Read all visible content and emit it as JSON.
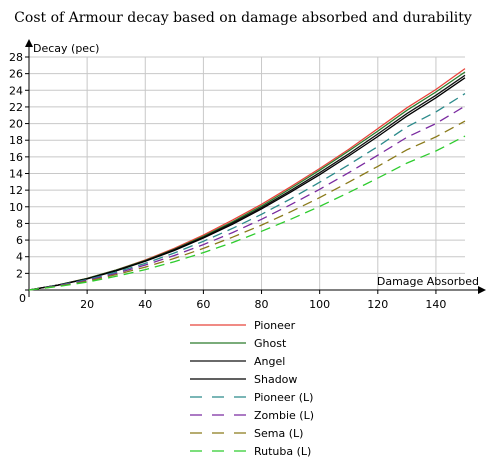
{
  "chart_data": {
    "type": "line",
    "title": "Cost of Armour decay based on damage absorbed and durability",
    "xlabel": "Damage Absorbed",
    "ylabel": "Decay (pec)",
    "xlim": [
      0,
      150
    ],
    "ylim": [
      0,
      28
    ],
    "x_ticks": [
      0,
      20,
      40,
      60,
      80,
      100,
      120,
      140
    ],
    "y_ticks": [
      2,
      4,
      6,
      8,
      10,
      12,
      14,
      16,
      18,
      20,
      22,
      24,
      26,
      28
    ],
    "origin_label": "0",
    "grid": true,
    "legend_position": "bottom",
    "x": [
      0,
      10,
      20,
      30,
      40,
      50,
      60,
      70,
      80,
      90,
      100,
      110,
      120,
      130,
      140,
      150
    ],
    "series": [
      {
        "name": "Pioneer",
        "color": "#e8433a",
        "style": "solid",
        "values": [
          0,
          0.6,
          1.4,
          2.4,
          3.6,
          5.0,
          6.6,
          8.4,
          10.3,
          12.4,
          14.6,
          16.9,
          19.4,
          21.9,
          24.1,
          26.6
        ]
      },
      {
        "name": "Ghost",
        "color": "#2a7a2a",
        "style": "solid",
        "values": [
          0,
          0.6,
          1.4,
          2.4,
          3.55,
          4.9,
          6.45,
          8.2,
          10.1,
          12.2,
          14.4,
          16.7,
          19.1,
          21.6,
          23.8,
          26.2
        ]
      },
      {
        "name": "Angel",
        "color": "#111111",
        "style": "solid",
        "values": [
          0,
          0.6,
          1.35,
          2.35,
          3.5,
          4.85,
          6.35,
          8.05,
          9.9,
          11.95,
          14.1,
          16.35,
          18.75,
          21.2,
          23.4,
          25.8
        ]
      },
      {
        "name": "Shadow",
        "color": "#000000",
        "style": "solid",
        "values": [
          0,
          0.58,
          1.33,
          2.3,
          3.45,
          4.75,
          6.25,
          7.9,
          9.75,
          11.75,
          13.85,
          16.1,
          18.45,
          20.9,
          23.1,
          25.5
        ]
      },
      {
        "name": "Pioneer (L)",
        "color": "#2a8a8a",
        "style": "dashed",
        "values": [
          0,
          0.55,
          1.25,
          2.15,
          3.2,
          4.45,
          5.85,
          7.4,
          9.1,
          10.95,
          12.95,
          15.05,
          17.25,
          19.6,
          21.4,
          23.6
        ]
      },
      {
        "name": "Zombie (L)",
        "color": "#7a2aa0",
        "style": "dashed",
        "values": [
          0,
          0.5,
          1.15,
          2.0,
          3.0,
          4.15,
          5.45,
          6.9,
          8.5,
          10.25,
          12.1,
          14.1,
          16.2,
          18.35,
          20.0,
          22.1
        ]
      },
      {
        "name": "Sema (L)",
        "color": "#8a7a1a",
        "style": "dashed",
        "values": [
          0,
          0.46,
          1.05,
          1.85,
          2.75,
          3.8,
          5.0,
          6.35,
          7.8,
          9.4,
          11.1,
          12.95,
          14.85,
          16.85,
          18.4,
          20.3
        ]
      },
      {
        "name": "Rutuba (L)",
        "color": "#2ecc2e",
        "style": "dashed",
        "values": [
          0,
          0.42,
          0.95,
          1.65,
          2.45,
          3.4,
          4.5,
          5.7,
          7.05,
          8.5,
          10.05,
          11.7,
          13.45,
          15.25,
          16.7,
          18.5
        ]
      }
    ]
  }
}
